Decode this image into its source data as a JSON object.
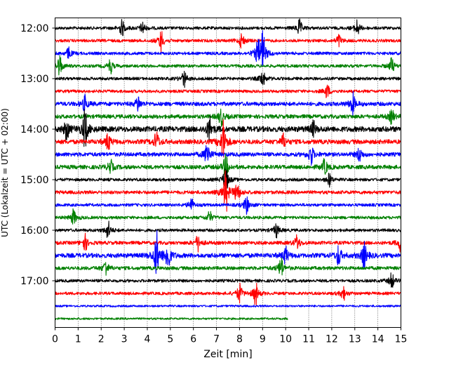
{
  "chart_data": {
    "type": "line",
    "title": "",
    "xlabel": "Zeit  [min]",
    "ylabel": "UTC (Lokalzeit = UTC + 02:00)",
    "xlim": [
      0,
      15
    ],
    "x_ticks": [
      "0",
      "1",
      "2",
      "3",
      "4",
      "5",
      "6",
      "7",
      "8",
      "9",
      "10",
      "11",
      "12",
      "13",
      "14",
      "15"
    ],
    "y_tick_labels": [
      "12:00",
      "13:00",
      "14:00",
      "15:00",
      "16:00",
      "17:00"
    ],
    "grid": "vertical dotted",
    "trace_colors": [
      "#000000",
      "#ff0000",
      "#0000ff",
      "#008000"
    ],
    "traces": [
      {
        "start": "12:00",
        "color": "#000000",
        "end_min": 15,
        "noise": 0.3,
        "events": [
          [
            2.9,
            0.9
          ],
          [
            3.8,
            0.7
          ],
          [
            10.6,
            0.9
          ],
          [
            13.1,
            0.9
          ]
        ]
      },
      {
        "start": "12:15",
        "color": "#ff0000",
        "end_min": 15,
        "noise": 0.3,
        "events": [
          [
            4.6,
            1.2
          ],
          [
            8.1,
            0.9
          ],
          [
            12.3,
            0.7
          ]
        ]
      },
      {
        "start": "12:30",
        "color": "#0000ff",
        "end_min": 15,
        "noise": 0.3,
        "events": [
          [
            0.6,
            0.7
          ],
          [
            8.8,
            1.3
          ],
          [
            9.0,
            2.6
          ]
        ]
      },
      {
        "start": "12:45",
        "color": "#008000",
        "end_min": 15,
        "noise": 0.3,
        "events": [
          [
            0.2,
            1.2
          ],
          [
            2.4,
            0.8
          ],
          [
            14.6,
            0.9
          ]
        ]
      },
      {
        "start": "13:00",
        "color": "#000000",
        "end_min": 15,
        "noise": 0.3,
        "events": [
          [
            5.6,
            0.9
          ],
          [
            9.0,
            1.0
          ]
        ]
      },
      {
        "start": "13:15",
        "color": "#ff0000",
        "end_min": 15,
        "noise": 0.3,
        "events": [
          [
            11.8,
            0.8
          ]
        ]
      },
      {
        "start": "13:30",
        "color": "#0000ff",
        "end_min": 15,
        "noise": 0.4,
        "events": [
          [
            1.3,
            0.9
          ],
          [
            3.6,
            0.9
          ],
          [
            12.9,
            1.3
          ]
        ]
      },
      {
        "start": "13:45",
        "color": "#008000",
        "end_min": 15,
        "noise": 0.4,
        "events": [
          [
            7.2,
            1.0
          ],
          [
            14.6,
            0.8
          ]
        ]
      },
      {
        "start": "14:00",
        "color": "#000000",
        "end_min": 15,
        "noise": 0.55,
        "events": [
          [
            0.5,
            1.2
          ],
          [
            1.3,
            2.2
          ],
          [
            6.7,
            1.4
          ],
          [
            11.2,
            0.8
          ]
        ]
      },
      {
        "start": "14:15",
        "color": "#ff0000",
        "end_min": 15,
        "noise": 0.45,
        "events": [
          [
            2.3,
            1.0
          ],
          [
            4.4,
            1.1
          ],
          [
            7.3,
            2.4
          ],
          [
            9.9,
            0.8
          ]
        ]
      },
      {
        "start": "14:30",
        "color": "#0000ff",
        "end_min": 15,
        "noise": 0.4,
        "events": [
          [
            6.6,
            1.5
          ],
          [
            11.1,
            1.2
          ],
          [
            13.2,
            0.8
          ]
        ]
      },
      {
        "start": "14:45",
        "color": "#008000",
        "end_min": 15,
        "noise": 0.4,
        "events": [
          [
            7.4,
            1.3
          ],
          [
            2.4,
            0.8
          ],
          [
            11.7,
            0.9
          ]
        ]
      },
      {
        "start": "15:00",
        "color": "#000000",
        "end_min": 15,
        "noise": 0.3,
        "events": [
          [
            7.4,
            1.6
          ],
          [
            11.9,
            0.7
          ]
        ]
      },
      {
        "start": "15:15",
        "color": "#ff0000",
        "end_min": 15,
        "noise": 0.35,
        "events": [
          [
            7.4,
            2.4
          ],
          [
            7.9,
            1.2
          ]
        ]
      },
      {
        "start": "15:30",
        "color": "#0000ff",
        "end_min": 15,
        "noise": 0.3,
        "events": [
          [
            5.9,
            0.8
          ],
          [
            8.3,
            1.0
          ]
        ]
      },
      {
        "start": "15:45",
        "color": "#008000",
        "end_min": 15,
        "noise": 0.3,
        "events": [
          [
            0.8,
            0.9
          ],
          [
            6.7,
            0.7
          ]
        ]
      },
      {
        "start": "16:00",
        "color": "#000000",
        "end_min": 15,
        "noise": 0.3,
        "events": [
          [
            2.3,
            1.0
          ],
          [
            9.6,
            0.8
          ]
        ]
      },
      {
        "start": "16:15",
        "color": "#ff0000",
        "end_min": 15,
        "noise": 0.35,
        "events": [
          [
            1.3,
            0.9
          ],
          [
            6.2,
            0.9
          ],
          [
            10.5,
            0.9
          ],
          [
            15.0,
            1.1
          ]
        ]
      },
      {
        "start": "16:30",
        "color": "#0000ff",
        "end_min": 15,
        "noise": 0.45,
        "events": [
          [
            4.4,
            2.6
          ],
          [
            4.9,
            1.8
          ],
          [
            10.0,
            1.0
          ],
          [
            12.3,
            1.2
          ],
          [
            13.4,
            1.5
          ]
        ]
      },
      {
        "start": "16:45",
        "color": "#008000",
        "end_min": 15,
        "noise": 0.35,
        "events": [
          [
            2.2,
            0.9
          ],
          [
            9.8,
            1.2
          ]
        ]
      },
      {
        "start": "17:00",
        "color": "#000000",
        "end_min": 15,
        "noise": 0.3,
        "events": [
          [
            14.6,
            0.9
          ]
        ]
      },
      {
        "start": "17:15",
        "color": "#ff0000",
        "end_min": 15,
        "noise": 0.3,
        "events": [
          [
            8.0,
            1.1
          ],
          [
            8.7,
            1.3
          ],
          [
            12.5,
            0.8
          ]
        ]
      },
      {
        "start": "17:30",
        "color": "#0000ff",
        "end_min": 15,
        "noise": 0.2,
        "events": []
      },
      {
        "start": "17:45",
        "color": "#008000",
        "end_min": 10.1,
        "noise": 0.2,
        "events": []
      }
    ]
  }
}
